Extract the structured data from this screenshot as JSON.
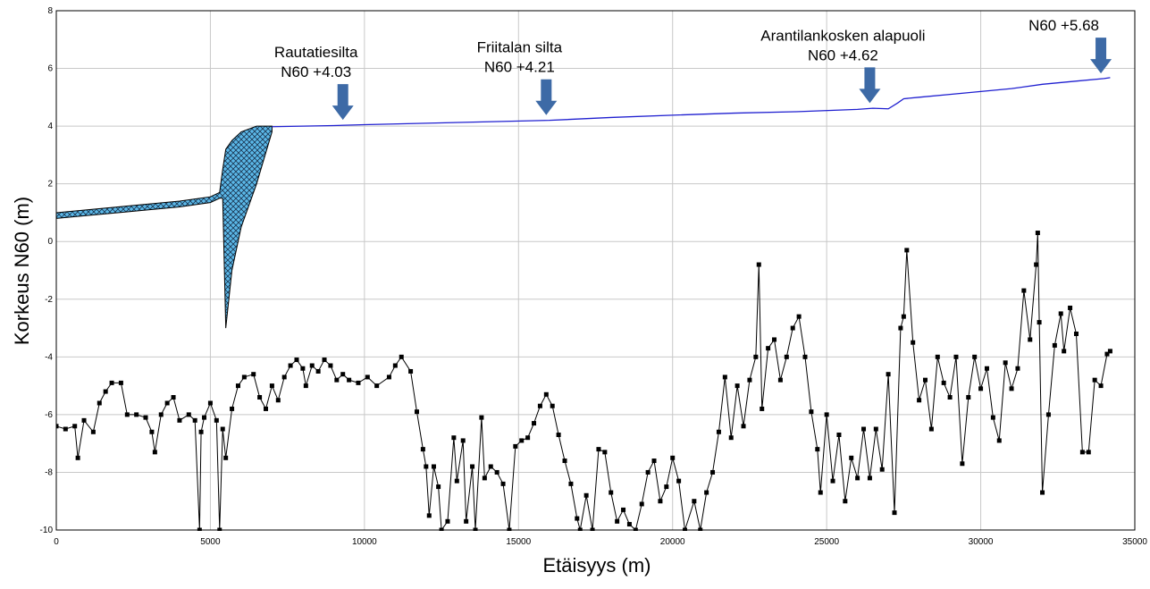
{
  "chart_data": {
    "type": "line",
    "x_label": "Etäisyys (m)",
    "y_label": "Korkeus N60  (m)",
    "xlim": [
      0,
      35000
    ],
    "xticks": [
      0,
      5000,
      10000,
      15000,
      20000,
      25000,
      30000,
      35000
    ],
    "ylim": [
      -10,
      8
    ],
    "yticks": [
      -10,
      -8,
      -6,
      -4,
      -2,
      0,
      2,
      4,
      6,
      8
    ],
    "grid": true,
    "structure": {
      "color": "#5bb8e8",
      "x": [
        0,
        1000,
        2000,
        3000,
        4000,
        5000,
        5300,
        5400,
        5500,
        5700,
        6000,
        6500,
        7000
      ],
      "upper": [
        1.0,
        1.1,
        1.2,
        1.3,
        1.4,
        1.55,
        1.7,
        2.5,
        3.2,
        3.5,
        3.8,
        4.0,
        4.0
      ],
      "lower": [
        0.8,
        0.9,
        1.0,
        1.1,
        1.2,
        1.35,
        1.5,
        1.5,
        -3.0,
        -1.0,
        0.5,
        2.0,
        3.8
      ]
    },
    "water": {
      "color": "#1f1fd0",
      "x": [
        7000,
        8000,
        9000,
        10000,
        12000,
        14000,
        16000,
        18000,
        20000,
        22000,
        24000,
        26000,
        26500,
        27000,
        27300,
        27500,
        28000,
        29000,
        30000,
        31000,
        32000,
        33000,
        34000,
        34200
      ],
      "values": [
        3.98,
        4.0,
        4.02,
        4.05,
        4.1,
        4.15,
        4.2,
        4.3,
        4.38,
        4.45,
        4.5,
        4.58,
        4.62,
        4.6,
        4.8,
        4.95,
        5.0,
        5.1,
        5.2,
        5.3,
        5.45,
        5.55,
        5.65,
        5.68
      ]
    },
    "bed": {
      "color": "#000000",
      "x": [
        0,
        300,
        600,
        700,
        900,
        1200,
        1400,
        1600,
        1800,
        2100,
        2300,
        2600,
        2900,
        3100,
        3200,
        3400,
        3600,
        3800,
        4000,
        4300,
        4500,
        4650,
        4700,
        4800,
        5000,
        5200,
        5300,
        5400,
        5500,
        5700,
        5900,
        6100,
        6400,
        6600,
        6800,
        7000,
        7200,
        7400,
        7600,
        7800,
        8000,
        8100,
        8300,
        8500,
        8700,
        8900,
        9100,
        9300,
        9500,
        9800,
        10100,
        10400,
        10800,
        11000,
        11200,
        11500,
        11700,
        11900,
        12000,
        12100,
        12250,
        12400,
        12500,
        12700,
        12900,
        13000,
        13200,
        13300,
        13500,
        13600,
        13800,
        13900,
        14100,
        14300,
        14500,
        14700,
        14900,
        15100,
        15300,
        15500,
        15700,
        15900,
        16100,
        16300,
        16500,
        16700,
        16900,
        17000,
        17200,
        17400,
        17600,
        17800,
        18000,
        18200,
        18400,
        18600,
        18800,
        19000,
        19200,
        19400,
        19600,
        19800,
        20000,
        20200,
        20400,
        20700,
        20900,
        21100,
        21300,
        21500,
        21700,
        21900,
        22100,
        22300,
        22500,
        22700,
        22800,
        22900,
        23100,
        23300,
        23500,
        23700,
        23900,
        24100,
        24300,
        24500,
        24700,
        24800,
        25000,
        25200,
        25400,
        25600,
        25800,
        26000,
        26200,
        26400,
        26600,
        26800,
        27000,
        27200,
        27400,
        27500,
        27600,
        27800,
        28000,
        28200,
        28400,
        28600,
        28800,
        29000,
        29200,
        29400,
        29600,
        29800,
        30000,
        30200,
        30400,
        30600,
        30800,
        31000,
        31200,
        31400,
        31600,
        31800,
        31850,
        31900,
        32000,
        32200,
        32400,
        32600,
        32700,
        32900,
        33100,
        33300,
        33500,
        33700,
        33900,
        34100,
        34200
      ],
      "values": [
        -6.4,
        -6.5,
        -6.4,
        -7.5,
        -6.2,
        -6.6,
        -5.6,
        -5.2,
        -4.9,
        -4.9,
        -6.0,
        -6.0,
        -6.1,
        -6.6,
        -7.3,
        -6.0,
        -5.6,
        -5.4,
        -6.2,
        -6.0,
        -6.2,
        -10,
        -6.6,
        -6.1,
        -5.6,
        -6.2,
        -10,
        -6.5,
        -7.5,
        -5.8,
        -5.0,
        -4.7,
        -4.6,
        -5.4,
        -5.8,
        -5.0,
        -5.5,
        -4.7,
        -4.3,
        -4.1,
        -4.4,
        -5.0,
        -4.3,
        -4.5,
        -4.1,
        -4.3,
        -4.8,
        -4.6,
        -4.8,
        -4.9,
        -4.7,
        -5.0,
        -4.7,
        -4.3,
        -4.0,
        -4.5,
        -5.9,
        -7.2,
        -7.8,
        -9.5,
        -7.8,
        -8.5,
        -10,
        -9.7,
        -6.8,
        -8.3,
        -6.9,
        -9.7,
        -7.8,
        -10,
        -6.1,
        -8.2,
        -7.8,
        -8.0,
        -8.4,
        -10,
        -7.1,
        -6.9,
        -6.8,
        -6.3,
        -5.7,
        -5.3,
        -5.7,
        -6.7,
        -7.6,
        -8.4,
        -9.6,
        -10,
        -8.8,
        -10,
        -7.2,
        -7.3,
        -8.7,
        -9.7,
        -9.3,
        -9.8,
        -10,
        -9.1,
        -8.0,
        -7.6,
        -9.0,
        -8.5,
        -7.5,
        -8.3,
        -10,
        -9.0,
        -10,
        -8.7,
        -8.0,
        -6.6,
        -4.7,
        -6.8,
        -5.0,
        -6.4,
        -4.8,
        -4.0,
        -0.8,
        -5.8,
        -3.7,
        -3.4,
        -4.8,
        -4.0,
        -3.0,
        -2.6,
        -4.0,
        -5.9,
        -7.2,
        -8.7,
        -6.0,
        -8.3,
        -6.7,
        -9.0,
        -7.5,
        -8.2,
        -6.5,
        -8.2,
        -6.5,
        -7.9,
        -4.6,
        -9.4,
        -3.0,
        -2.6,
        -0.3,
        -3.5,
        -5.5,
        -4.8,
        -6.5,
        -4.0,
        -4.9,
        -5.4,
        -4.0,
        -7.7,
        -5.4,
        -4.0,
        -5.1,
        -4.4,
        -6.1,
        -6.9,
        -4.2,
        -5.1,
        -4.4,
        -1.7,
        -3.4,
        -0.8,
        0.3,
        -2.8,
        -8.7,
        -6.0,
        -3.6,
        -2.5,
        -3.8,
        -2.3,
        -3.2,
        -7.3,
        -7.3,
        -4.8,
        -5.0,
        -3.9,
        -3.8
      ]
    },
    "arrow_color": "#3d6aa6",
    "annotations": [
      {
        "x": 9300,
        "lines": [
          "Rautatiesilta",
          "N60 +4.03"
        ]
      },
      {
        "x": 15900,
        "lines": [
          "Friitalan silta",
          "N60 +4.21"
        ]
      },
      {
        "x": 26400,
        "lines": [
          "Arantilankosken alapuoli",
          "N60 +4.62"
        ]
      },
      {
        "x": 33900,
        "lines": [
          "N60 +5.68"
        ]
      }
    ]
  }
}
